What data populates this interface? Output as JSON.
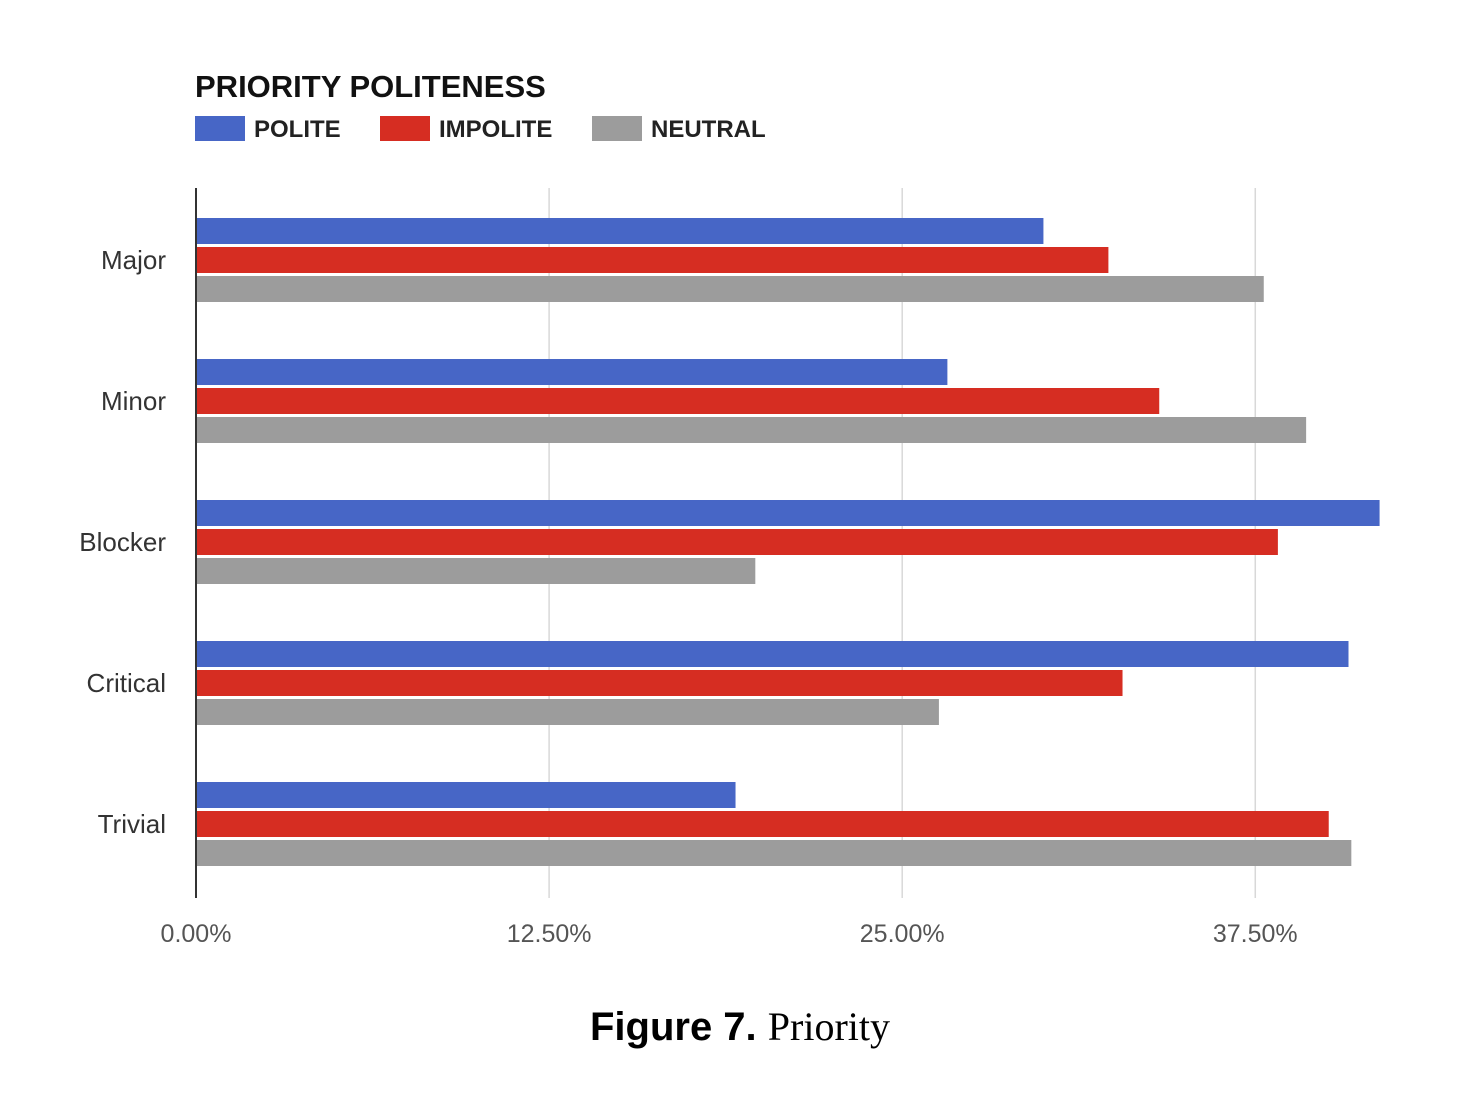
{
  "chart_data": {
    "type": "bar",
    "orientation": "horizontal",
    "title": "PRIORITY POLITENESS",
    "categories": [
      "Major",
      "Minor",
      "Blocker",
      "Critical",
      "Trivial"
    ],
    "series": [
      {
        "name": "POLITE",
        "color": "#4766c6",
        "values": [
          30.0,
          26.6,
          41.9,
          40.8,
          19.1
        ]
      },
      {
        "name": "IMPOLITE",
        "color": "#d62d22",
        "values": [
          32.3,
          34.1,
          38.3,
          32.8,
          40.1
        ]
      },
      {
        "name": "NEUTRAL",
        "color": "#9c9c9c",
        "values": [
          37.8,
          39.3,
          19.8,
          26.3,
          40.9
        ]
      }
    ],
    "xticks": [
      "0.00%",
      "12.50%",
      "25.00%",
      "37.50%"
    ],
    "xtick_values": [
      0,
      12.5,
      25,
      37.5
    ],
    "xlim": [
      0,
      42.8
    ],
    "grid": true,
    "legend_position": "top-left"
  },
  "caption": {
    "label": "Figure 7.",
    "text": "Priority"
  }
}
